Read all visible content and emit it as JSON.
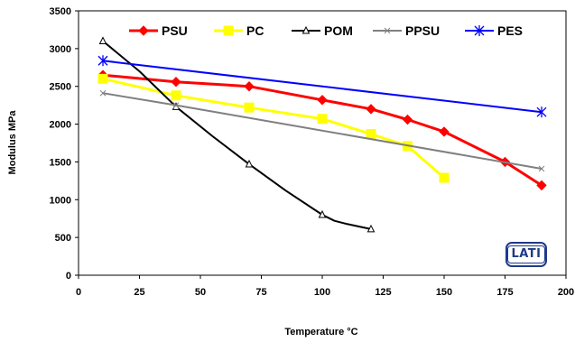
{
  "logo": {
    "text": "LATI",
    "color": "#1f3a8a"
  },
  "chart_data": {
    "type": "line",
    "title": "",
    "xlabel": "Temperature °C",
    "ylabel": "Modulus MPa",
    "xlim": [
      0,
      200
    ],
    "ylim": [
      0,
      3500
    ],
    "x_ticks": [
      0,
      25,
      50,
      75,
      100,
      125,
      150,
      175,
      200
    ],
    "y_ticks": [
      0,
      500,
      1000,
      1500,
      2000,
      2500,
      3000,
      3500
    ],
    "grid": false,
    "legend_position": "top",
    "series": [
      {
        "name": "PSU",
        "color": "#ff0000",
        "marker": "diamond",
        "x": [
          10,
          40,
          70,
          100,
          120,
          135,
          150,
          175,
          190
        ],
        "y": [
          2650,
          2560,
          2500,
          2320,
          2200,
          2060,
          1900,
          1500,
          1190
        ]
      },
      {
        "name": "PC",
        "color": "#ffff00",
        "marker": "square",
        "x": [
          10,
          40,
          70,
          100,
          120,
          135,
          150
        ],
        "y": [
          2600,
          2380,
          2220,
          2070,
          1870,
          1710,
          1290
        ]
      },
      {
        "name": "POM",
        "color": "#000000",
        "marker": "triangle",
        "x": [
          10,
          25,
          40,
          55,
          70,
          85,
          100,
          105,
          110,
          120
        ],
        "y": [
          3100,
          2700,
          2230,
          1840,
          1470,
          1120,
          800,
          720,
          680,
          610
        ]
      },
      {
        "name": "PPSU",
        "color": "#808080",
        "marker": "x",
        "x": [
          10,
          40,
          190
        ],
        "y": [
          2410,
          2250,
          1410
        ]
      },
      {
        "name": "PES",
        "color": "#0000ff",
        "marker": "asterisk",
        "x": [
          10,
          190
        ],
        "y": [
          2840,
          2160
        ]
      }
    ]
  }
}
